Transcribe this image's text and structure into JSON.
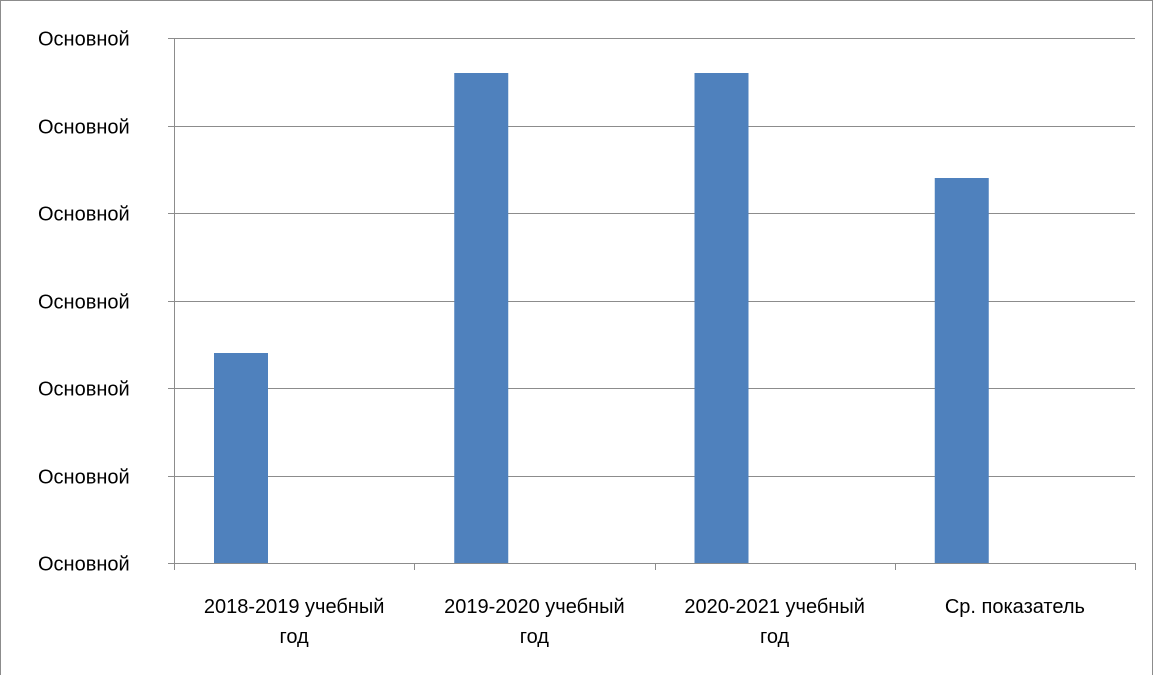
{
  "chart_data": {
    "type": "bar",
    "title": "",
    "xlabel": "",
    "ylabel": "",
    "categories": [
      [
        "2018-2019 учебный",
        "год"
      ],
      [
        "2019-2020 учебный",
        "год"
      ],
      [
        "2020-2021 учебный",
        "год"
      ],
      [
        "Ср. показатель"
      ]
    ],
    "values": [
      2.4,
      5.6,
      5.6,
      4.4
    ],
    "ylim": [
      0,
      6
    ],
    "y_ticks": [
      0,
      1,
      2,
      3,
      4,
      5,
      6
    ],
    "y_tick_labels": [
      "Основной",
      "Основной",
      "Основной",
      "Основной",
      "Основной",
      "Основной",
      "Основной"
    ],
    "grid": true,
    "legend": "none",
    "bar_color": "#4f81bd",
    "grid_color": "#8c8c8c"
  }
}
